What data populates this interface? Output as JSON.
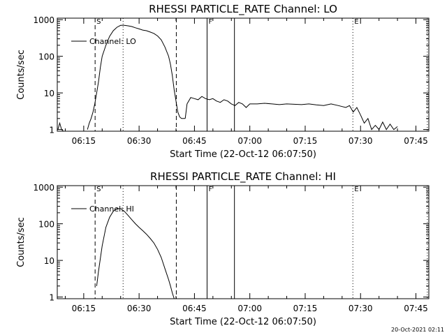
{
  "footer": {
    "timestamp": "20-Oct-2021 02:11"
  },
  "chart_data": [
    {
      "type": "line",
      "title": "RHESSI PARTICLE_RATE Channel: LO",
      "xlabel": "Start Time (22-Oct-12 06:07:50)",
      "ylabel": "Counts/sec",
      "y_scale": "log",
      "xlim": [
        "06:07:50",
        "07:48:30"
      ],
      "ylim": [
        0.9,
        1100
      ],
      "x_ticks": [
        "06:15",
        "06:30",
        "06:45",
        "07:00",
        "07:15",
        "07:30",
        "07:45"
      ],
      "y_ticks": [
        "1",
        "10",
        "100",
        "1000"
      ],
      "legend": {
        "position": "top-left",
        "entries": [
          "Channel: LO"
        ]
      },
      "markers": [
        {
          "label": "S",
          "time": "06:18:05",
          "style": "dashed"
        },
        {
          "label": "",
          "time": "06:40:05",
          "style": "dashed"
        },
        {
          "label": "",
          "time": "06:25:40",
          "style": "dotted"
        },
        {
          "label": "F",
          "time": "06:48:25",
          "style": "solid"
        },
        {
          "label": "",
          "time": "06:55:50",
          "style": "solid"
        },
        {
          "label": "E",
          "time": "07:27:55",
          "style": "dotted"
        },
        {
          "label": "",
          "time": "07:48:05",
          "style": "dotted"
        }
      ],
      "series": [
        {
          "name": "Channel: LO",
          "segments": [
            {
              "x": [
                "06:08:00",
                "06:08:30",
                "06:09:00",
                "06:09:30",
                "06:10:00"
              ],
              "y": [
                1,
                1.5,
                1,
                0.9,
                0.9
              ]
            },
            {
              "x": [
                "06:16:00",
                "06:16:30",
                "06:17:00",
                "06:17:30",
                "06:18:00",
                "06:18:30",
                "06:19:00",
                "06:19:30",
                "06:20:00",
                "06:21:00",
                "06:22:00",
                "06:23:00",
                "06:24:00",
                "06:25:00",
                "06:26:00",
                "06:27:00",
                "06:28:00",
                "06:29:00",
                "06:30:00",
                "06:31:00",
                "06:32:00",
                "06:33:00",
                "06:34:00",
                "06:35:00",
                "06:36:00",
                "06:37:00",
                "06:38:00",
                "06:38:30",
                "06:39:00",
                "06:39:30",
                "06:40:00",
                "06:40:30",
                "06:41:00",
                "06:41:30",
                "06:42:00",
                "06:42:30"
              ],
              "y": [
                1,
                1.5,
                2,
                3,
                5,
                10,
                20,
                50,
                100,
                200,
                350,
                500,
                620,
                700,
                700,
                680,
                650,
                600,
                560,
                520,
                500,
                460,
                420,
                360,
                280,
                180,
                100,
                60,
                30,
                12,
                6,
                3,
                2.2,
                2,
                2,
                2
              ]
            },
            {
              "x": [
                "06:42:30",
                "06:43:00",
                "06:44:00",
                "06:45:00",
                "06:46:00",
                "06:47:00",
                "06:48:00",
                "06:49:00",
                "06:50:00",
                "06:51:00",
                "06:52:00",
                "06:53:00",
                "06:54:00",
                "06:55:00",
                "06:56:00",
                "06:57:00",
                "06:58:00",
                "06:59:00",
                "07:00:00",
                "07:02:00",
                "07:04:00",
                "07:06:00",
                "07:08:00",
                "07:10:00",
                "07:12:00",
                "07:14:00",
                "07:16:00",
                "07:18:00",
                "07:20:00",
                "07:22:00",
                "07:24:00",
                "07:26:00",
                "07:27:00",
                "07:28:00",
                "07:29:00",
                "07:30:00"
              ],
              "y": [
                2,
                5,
                7.5,
                7,
                6.5,
                8,
                7,
                6.5,
                7,
                6,
                5.5,
                6.5,
                6,
                5,
                4.5,
                5.5,
                5,
                4,
                5,
                5,
                5.2,
                5,
                4.8,
                5,
                4.9,
                4.8,
                5,
                4.7,
                4.5,
                5,
                4.5,
                4,
                4.5,
                3,
                4,
                2.5
              ]
            },
            {
              "x": [
                "07:30:00",
                "07:31:00",
                "07:32:00",
                "07:33:00",
                "07:34:00",
                "07:35:00",
                "07:36:00",
                "07:37:00",
                "07:38:00",
                "07:39:00",
                "07:40:00"
              ],
              "y": [
                2.5,
                1.5,
                2,
                1,
                1.3,
                1,
                1.6,
                1,
                1.4,
                1,
                1.2
              ]
            }
          ]
        }
      ]
    },
    {
      "type": "line",
      "title": "RHESSI PARTICLE_RATE Channel: HI",
      "xlabel": "Start Time (22-Oct-12 06:07:50)",
      "ylabel": "Counts/sec",
      "y_scale": "log",
      "xlim": [
        "06:07:50",
        "07:48:30"
      ],
      "ylim": [
        0.9,
        1100
      ],
      "x_ticks": [
        "06:15",
        "06:30",
        "06:45",
        "07:00",
        "07:15",
        "07:30",
        "07:45"
      ],
      "y_ticks": [
        "1",
        "10",
        "100",
        "1000"
      ],
      "legend": {
        "position": "top-left",
        "entries": [
          "Channel: HI"
        ]
      },
      "markers": [
        {
          "label": "S",
          "time": "06:18:05",
          "style": "dashed"
        },
        {
          "label": "",
          "time": "06:40:05",
          "style": "dashed"
        },
        {
          "label": "",
          "time": "06:25:40",
          "style": "dotted"
        },
        {
          "label": "F",
          "time": "06:48:25",
          "style": "solid"
        },
        {
          "label": "",
          "time": "06:55:50",
          "style": "solid"
        },
        {
          "label": "E",
          "time": "07:27:55",
          "style": "dotted"
        },
        {
          "label": "",
          "time": "07:48:05",
          "style": "dotted"
        }
      ],
      "series": [
        {
          "name": "Channel: HI",
          "segments": [
            {
              "x": [
                "06:18:30",
                "06:19:00",
                "06:20:00",
                "06:21:00",
                "06:22:00",
                "06:23:00",
                "06:24:00",
                "06:25:00",
                "06:26:00",
                "06:27:00",
                "06:28:00",
                "06:29:00",
                "06:30:00",
                "06:31:00",
                "06:32:00",
                "06:33:00",
                "06:34:00",
                "06:35:00",
                "06:36:00",
                "06:37:00",
                "06:38:00",
                "06:38:30",
                "06:39:00",
                "06:39:30"
              ],
              "y": [
                2,
                5,
                25,
                80,
                150,
                220,
                260,
                260,
                220,
                170,
                130,
                100,
                80,
                65,
                52,
                40,
                30,
                20,
                12,
                6,
                3,
                2,
                1.3,
                0.9
              ]
            }
          ]
        }
      ]
    }
  ]
}
